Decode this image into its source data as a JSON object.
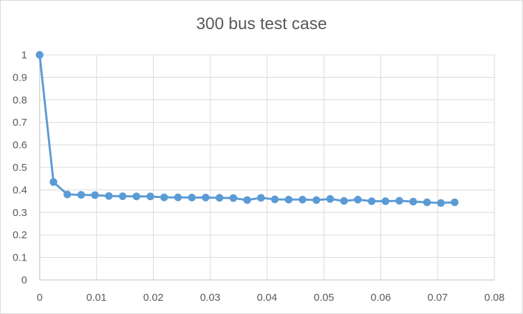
{
  "chart_data": {
    "type": "scatter",
    "title": "300 bus test case",
    "xlabel": "",
    "ylabel": "",
    "xlim": [
      0,
      0.08
    ],
    "ylim": [
      0,
      1
    ],
    "x_ticks": [
      "0",
      "0.01",
      "0.02",
      "0.03",
      "0.04",
      "0.05",
      "0.06",
      "0.07",
      "0.08"
    ],
    "y_ticks": [
      "0",
      "0.1",
      "0.2",
      "0.3",
      "0.4",
      "0.5",
      "0.6",
      "0.7",
      "0.8",
      "0.9",
      "1"
    ],
    "grid": true,
    "legend": "none",
    "line_color": "#5b9bd5",
    "grid_color": "#d9d9d9",
    "series": [
      {
        "x": [
          0,
          0.00243,
          0.00487,
          0.0073,
          0.00973,
          0.01217,
          0.0146,
          0.01703,
          0.01947,
          0.0219,
          0.02433,
          0.02677,
          0.0292,
          0.03163,
          0.03407,
          0.0365,
          0.03893,
          0.04137,
          0.0438,
          0.04623,
          0.04867,
          0.0511,
          0.05353,
          0.05597,
          0.0584,
          0.06083,
          0.06327,
          0.0657,
          0.06813,
          0.07057,
          0.073
        ],
        "y": [
          1.0,
          0.435,
          0.38,
          0.378,
          0.377,
          0.373,
          0.372,
          0.371,
          0.371,
          0.367,
          0.367,
          0.366,
          0.366,
          0.365,
          0.364,
          0.355,
          0.365,
          0.358,
          0.357,
          0.357,
          0.355,
          0.36,
          0.351,
          0.357,
          0.35,
          0.35,
          0.352,
          0.348,
          0.345,
          0.342,
          0.345
        ]
      }
    ]
  }
}
